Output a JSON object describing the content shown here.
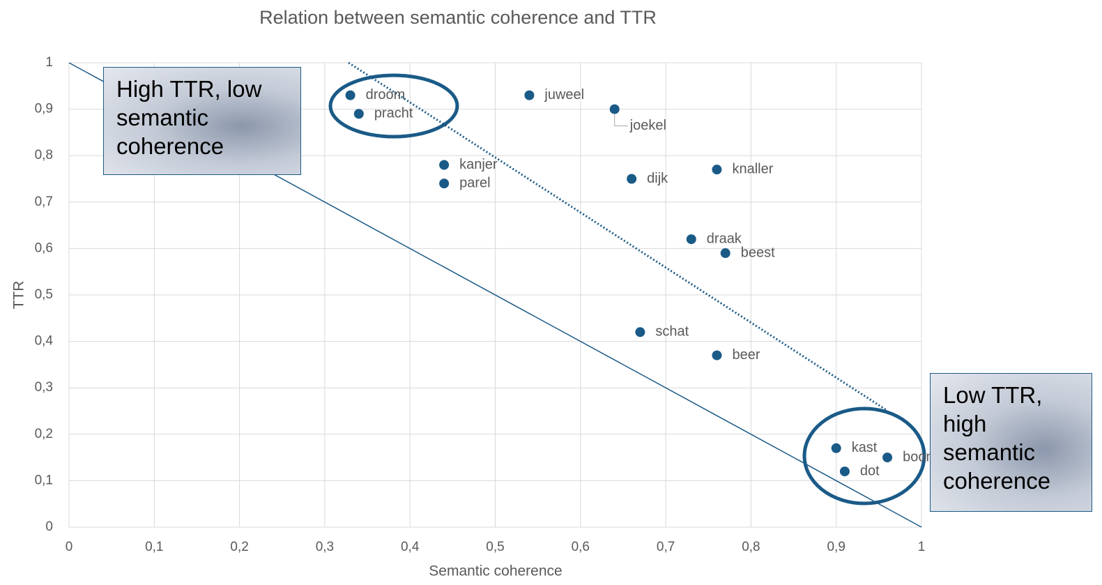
{
  "chart_data": {
    "type": "scatter",
    "title": "Relation between semantic coherence and TTR",
    "xlabel": "Semantic coherence",
    "ylabel": "TTR",
    "labels": [
      "droom",
      "pracht",
      "juweel",
      "joekel",
      "kanjer",
      "parel",
      "dijk",
      "knaller",
      "draak",
      "beest",
      "schat",
      "beer",
      "kast",
      "boom",
      "dot"
    ],
    "x": [
      0.33,
      0.34,
      0.54,
      0.64,
      0.44,
      0.44,
      0.66,
      0.76,
      0.73,
      0.77,
      0.67,
      0.76,
      0.9,
      0.96,
      0.91
    ],
    "values": [
      0.93,
      0.89,
      0.93,
      0.9,
      0.78,
      0.74,
      0.75,
      0.77,
      0.62,
      0.59,
      0.42,
      0.37,
      0.17,
      0.15,
      0.12
    ],
    "color": "#1a5a87",
    "lines": [
      {
        "style": "solid",
        "color": "#1a5a87",
        "x": [
          0,
          1
        ],
        "y": [
          1,
          0
        ]
      },
      {
        "style": "dotted",
        "color": "#1a5a87",
        "x": [
          0.328,
          0.959
        ],
        "y": [
          1,
          0.252
        ]
      }
    ],
    "xlim": [
      0,
      1
    ],
    "ylim": [
      0,
      1
    ],
    "xticks": [
      0,
      {
        "value": 0.1,
        "label": "0,1"
      },
      {
        "value": 0.2,
        "label": "0,2"
      },
      {
        "value": 0.3,
        "label": "0,3"
      },
      {
        "value": 0.4,
        "label": "0,4"
      },
      {
        "value": 0.5,
        "label": "0,5"
      },
      {
        "value": 0.6,
        "label": "0,6"
      },
      {
        "value": 0.7,
        "label": "0,7"
      },
      {
        "value": 0.8,
        "label": "0,8"
      },
      {
        "value": 0.9,
        "label": "0,9"
      },
      1
    ],
    "yticks": [
      0,
      {
        "value": 0.1,
        "label": "0,1"
      },
      {
        "value": 0.2,
        "label": "0,2"
      },
      {
        "value": 0.3,
        "label": "0,3"
      },
      {
        "value": 0.4,
        "label": "0,4"
      },
      {
        "value": 0.5,
        "label": "0,5"
      },
      {
        "value": 0.6,
        "label": "0,6"
      },
      {
        "value": 0.7,
        "label": "0,7"
      },
      {
        "value": 0.8,
        "label": "0,8"
      },
      {
        "value": 0.9,
        "label": "0,9"
      },
      1
    ],
    "grid": true,
    "annotations": [
      "High TTR, low semantic coherence",
      "Low TTR, high semantic coherence"
    ]
  }
}
